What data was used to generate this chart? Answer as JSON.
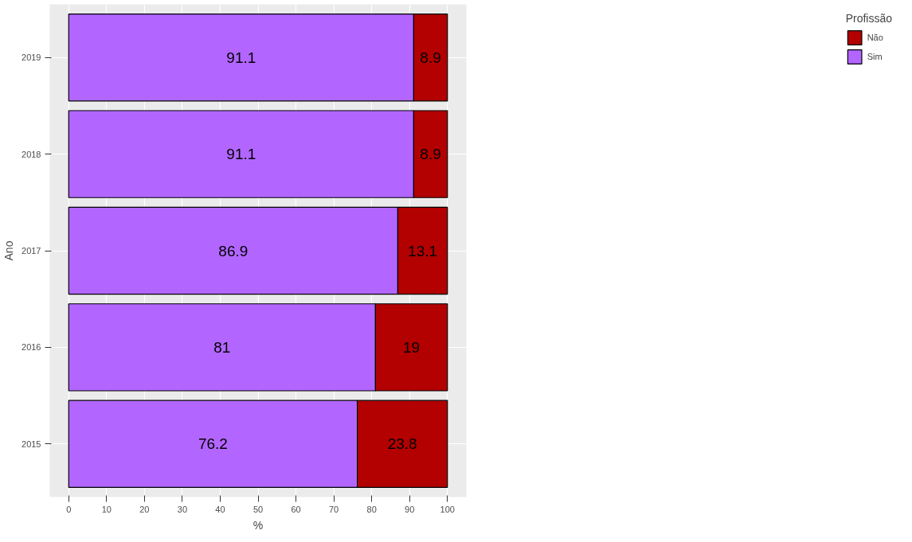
{
  "chart_data": {
    "type": "bar",
    "orientation": "horizontal",
    "stacked": true,
    "xlabel": "%",
    "ylabel": "Ano",
    "legend_title": "Profissão",
    "categories": [
      "2019",
      "2018",
      "2017",
      "2016",
      "2015"
    ],
    "series": [
      {
        "name": "Sim",
        "color": "#b266ff",
        "values": [
          91.1,
          91.1,
          86.9,
          81,
          76.2
        ]
      },
      {
        "name": "Não",
        "color": "#b30000",
        "values": [
          8.9,
          8.9,
          13.1,
          19,
          23.8
        ]
      }
    ],
    "xlim": [
      -5,
      105
    ],
    "xticks": [
      0,
      10,
      20,
      30,
      40,
      50,
      60,
      70,
      80,
      90,
      100
    ],
    "grid": true,
    "legend": "right",
    "data_labels": true
  }
}
